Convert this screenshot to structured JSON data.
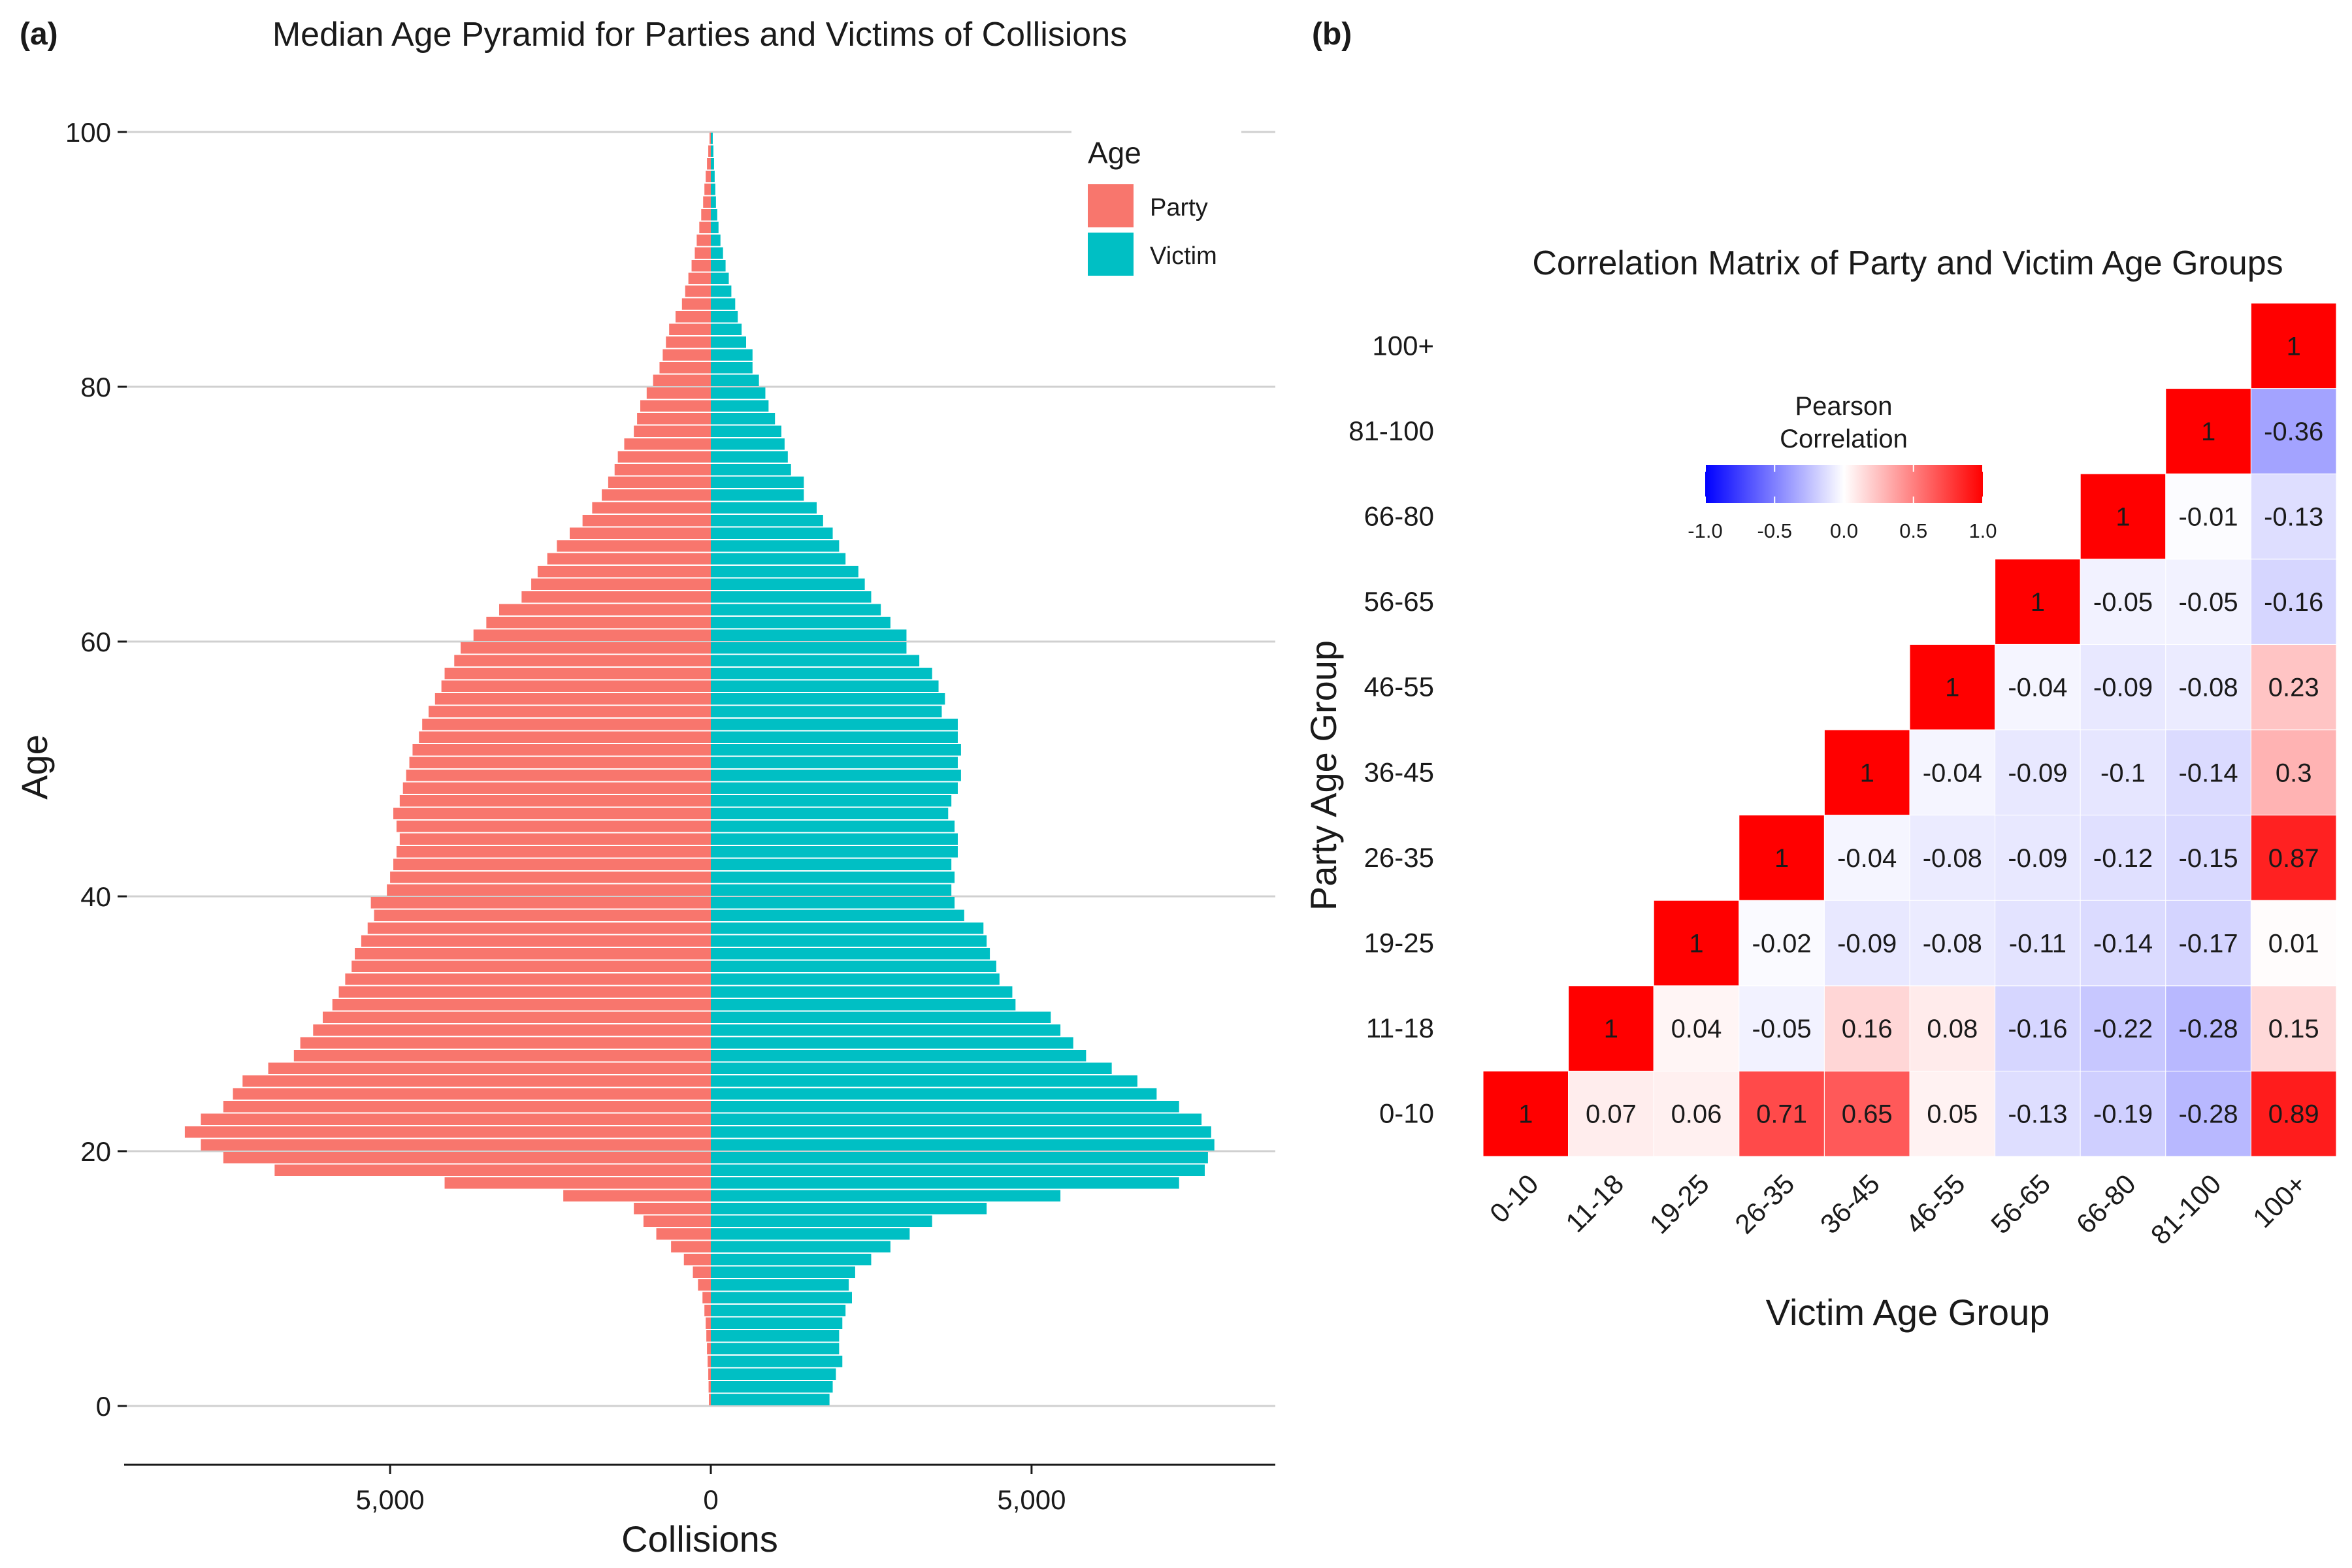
{
  "panel_a": {
    "label": "(a)",
    "title": "Median Age Pyramid for Parties and Victims of Collisions",
    "xlabel": "Collisions",
    "ylabel": "Age",
    "x_tick_labels": [
      "5,000",
      "0",
      "5,000"
    ],
    "y_tick_labels": [
      "0",
      "20",
      "40",
      "60",
      "80",
      "100"
    ],
    "legend": {
      "title": "Age",
      "items": [
        "Party",
        "Victim"
      ]
    }
  },
  "panel_b": {
    "label": "(b)",
    "title": "Correlation Matrix of Party and Victim Age Groups",
    "xlabel": "Victim Age Group",
    "ylabel": "Party Age Group",
    "colorbar": {
      "title_line1": "Pearson",
      "title_line2": "Correlation",
      "tick_labels": [
        "-1.0",
        "-0.5",
        "0.0",
        "0.5",
        "1.0"
      ]
    }
  },
  "chart_data": [
    {
      "type": "bar",
      "orientation": "horizontal",
      "title": "Median Age Pyramid for Parties and Victims of Collisions",
      "xlabel": "Collisions",
      "ylabel": "Age",
      "xlim": [
        -8800,
        8800
      ],
      "ylim": [
        -5,
        105
      ],
      "legend_position": "top-right",
      "grid": true,
      "colors": {
        "Party": "#F8766D",
        "Victim": "#00BFC4"
      },
      "ages": [
        0,
        1,
        2,
        3,
        4,
        5,
        6,
        7,
        8,
        9,
        10,
        11,
        12,
        13,
        14,
        15,
        16,
        17,
        18,
        19,
        20,
        21,
        22,
        23,
        24,
        25,
        26,
        27,
        28,
        29,
        30,
        31,
        32,
        33,
        34,
        35,
        36,
        37,
        38,
        39,
        40,
        41,
        42,
        43,
        44,
        45,
        46,
        47,
        48,
        49,
        50,
        51,
        52,
        53,
        54,
        55,
        56,
        57,
        58,
        59,
        60,
        61,
        62,
        63,
        64,
        65,
        66,
        67,
        68,
        69,
        70,
        71,
        72,
        73,
        74,
        75,
        76,
        77,
        78,
        79,
        80,
        81,
        82,
        83,
        84,
        85,
        86,
        87,
        88,
        89,
        90,
        91,
        92,
        93,
        94,
        95,
        96,
        97,
        98,
        99
      ],
      "series": [
        {
          "name": "Party",
          "values": [
            30,
            35,
            40,
            50,
            60,
            70,
            80,
            100,
            130,
            200,
            280,
            420,
            620,
            850,
            1050,
            1200,
            2300,
            4150,
            6800,
            7600,
            7950,
            8200,
            7950,
            7600,
            7450,
            7300,
            6900,
            6500,
            6400,
            6200,
            6050,
            5900,
            5800,
            5700,
            5600,
            5550,
            5450,
            5350,
            5250,
            5300,
            5050,
            5000,
            4950,
            4900,
            4850,
            4900,
            4950,
            4850,
            4800,
            4750,
            4700,
            4650,
            4550,
            4500,
            4400,
            4300,
            4200,
            4150,
            4000,
            3900,
            3700,
            3500,
            3300,
            2950,
            2800,
            2700,
            2550,
            2400,
            2200,
            2000,
            1850,
            1700,
            1600,
            1500,
            1450,
            1350,
            1200,
            1150,
            1100,
            1000,
            900,
            800,
            750,
            700,
            650,
            550,
            450,
            400,
            350,
            300,
            250,
            220,
            180,
            150,
            120,
            100,
            80,
            60,
            40,
            20
          ]
        },
        {
          "name": "Victim",
          "values": [
            1850,
            1900,
            1950,
            2050,
            2000,
            2000,
            2050,
            2100,
            2200,
            2150,
            2250,
            2500,
            2800,
            3100,
            3450,
            4300,
            5450,
            7300,
            7700,
            7750,
            7850,
            7800,
            7650,
            7300,
            6950,
            6650,
            6250,
            5850,
            5650,
            5450,
            5300,
            4750,
            4700,
            4500,
            4450,
            4350,
            4300,
            4250,
            3950,
            3800,
            3750,
            3800,
            3750,
            3850,
            3850,
            3800,
            3700,
            3750,
            3850,
            3900,
            3850,
            3900,
            3850,
            3850,
            3600,
            3650,
            3550,
            3450,
            3250,
            3050,
            3050,
            2800,
            2650,
            2500,
            2400,
            2300,
            2100,
            2000,
            1900,
            1750,
            1650,
            1450,
            1450,
            1250,
            1200,
            1150,
            1100,
            1000,
            900,
            850,
            750,
            650,
            650,
            550,
            480,
            420,
            380,
            320,
            280,
            230,
            190,
            150,
            120,
            100,
            80,
            70,
            60,
            50,
            40,
            30
          ]
        }
      ]
    },
    {
      "type": "heatmap",
      "title": "Correlation Matrix of Party and Victim Age Groups",
      "xlabel": "Victim Age Group",
      "ylabel": "Party Age Group",
      "categories": [
        "0-10",
        "11-18",
        "19-25",
        "26-35",
        "36-45",
        "46-55",
        "56-65",
        "66-80",
        "81-100",
        "100+"
      ],
      "value_range": [
        -1,
        1
      ],
      "colorscale": {
        "low": "#0000FF",
        "mid": "#FFFFFF",
        "high": "#FF0000"
      },
      "colorbar_position": "top-left",
      "rows": [
        {
          "party": "0-10",
          "values": [
            1,
            0.07,
            0.06,
            0.71,
            0.65,
            0.05,
            -0.13,
            -0.19,
            -0.28,
            0.89
          ]
        },
        {
          "party": "11-18",
          "values": [
            null,
            1,
            0.04,
            -0.05,
            0.16,
            0.08,
            -0.16,
            -0.22,
            -0.28,
            0.15
          ]
        },
        {
          "party": "19-25",
          "values": [
            null,
            null,
            1,
            -0.02,
            -0.09,
            -0.08,
            -0.11,
            -0.14,
            -0.17,
            0.01
          ]
        },
        {
          "party": "26-35",
          "values": [
            null,
            null,
            null,
            1,
            -0.04,
            -0.08,
            -0.09,
            -0.12,
            -0.15,
            0.87
          ]
        },
        {
          "party": "36-45",
          "values": [
            null,
            null,
            null,
            null,
            1,
            -0.04,
            -0.09,
            -0.1,
            -0.14,
            0.3
          ]
        },
        {
          "party": "46-55",
          "values": [
            null,
            null,
            null,
            null,
            null,
            1,
            -0.04,
            -0.09,
            -0.08,
            0.23
          ]
        },
        {
          "party": "56-65",
          "values": [
            null,
            null,
            null,
            null,
            null,
            null,
            1,
            -0.05,
            -0.05,
            -0.16
          ]
        },
        {
          "party": "66-80",
          "values": [
            null,
            null,
            null,
            null,
            null,
            null,
            null,
            1,
            -0.01,
            -0.13
          ]
        },
        {
          "party": "81-100",
          "values": [
            null,
            null,
            null,
            null,
            null,
            null,
            null,
            null,
            1,
            -0.36
          ]
        },
        {
          "party": "100+",
          "values": [
            null,
            null,
            null,
            null,
            null,
            null,
            null,
            null,
            null,
            1
          ]
        }
      ]
    }
  ]
}
